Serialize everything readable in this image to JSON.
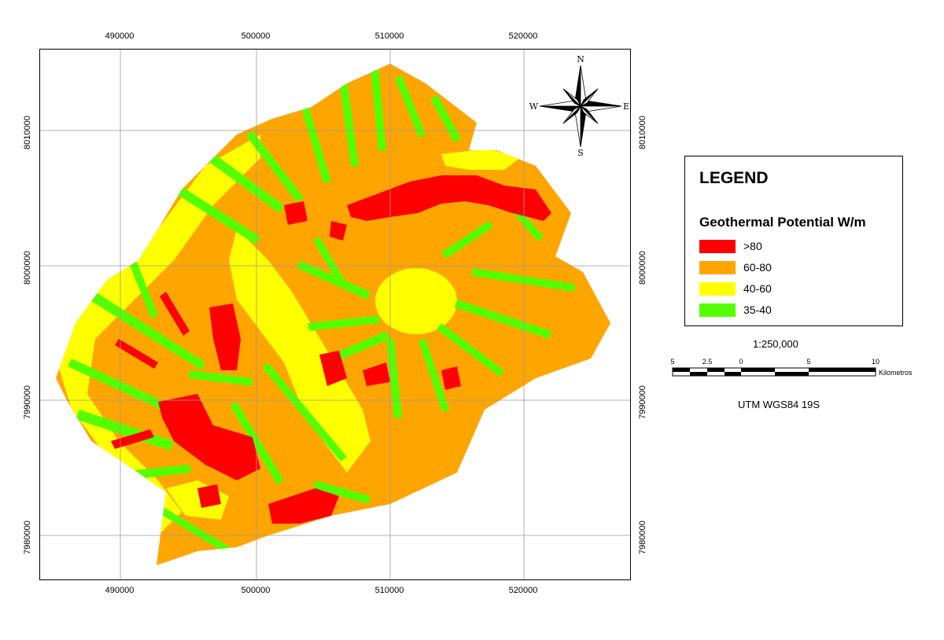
{
  "map": {
    "x_ticks": [
      "490000",
      "500000",
      "510000",
      "520000"
    ],
    "y_ticks": [
      "8010000",
      "8000000",
      "7990000",
      "7980000"
    ]
  },
  "compass": {
    "n": "N",
    "s": "S",
    "e": "E",
    "w": "W"
  },
  "legend": {
    "title": "LEGEND",
    "subtitle": "Geothermal Potential W/m",
    "items": [
      {
        "label": ">80",
        "color": "#ff0000"
      },
      {
        "label": "60-80",
        "color": "#ffa500"
      },
      {
        "label": "40-60",
        "color": "#ffff00"
      },
      {
        "label": "35-40",
        "color": "#55ff00"
      }
    ]
  },
  "scale": {
    "ratio": "1:250,000",
    "labels": [
      "5",
      "2.5",
      "0",
      "5",
      "10"
    ],
    "unit": "Kilometros"
  },
  "projection": "UTM WGS84 19S"
}
